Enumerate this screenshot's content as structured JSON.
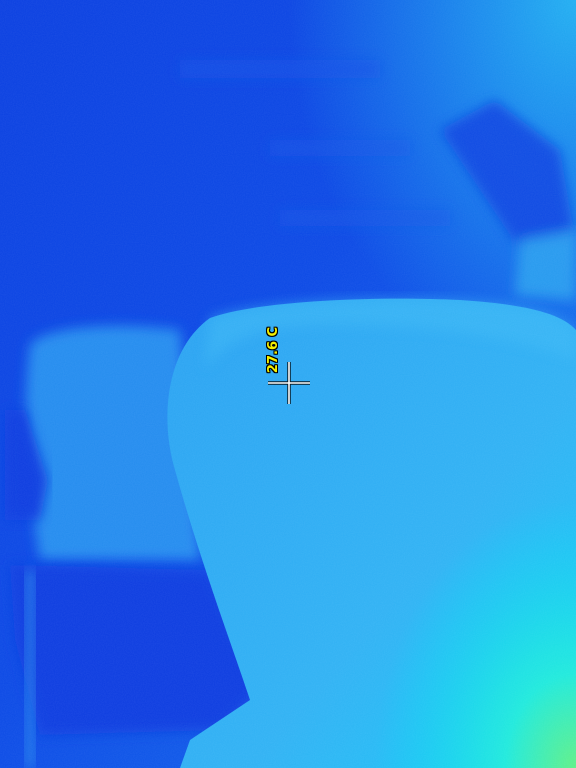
{
  "spot_reading": {
    "value": 27.6,
    "unit": "C",
    "label": "27.6 C"
  },
  "palette": {
    "cold": "#0a3fe0",
    "cool": "#1e8cf0",
    "mid": "#35b6f4",
    "warm": "#00e0f8",
    "hot": "#40f0a0"
  },
  "overlay": {
    "text_color": "#f5f000",
    "crosshair_color": "#ffffff",
    "icon": "crosshair-icon"
  }
}
